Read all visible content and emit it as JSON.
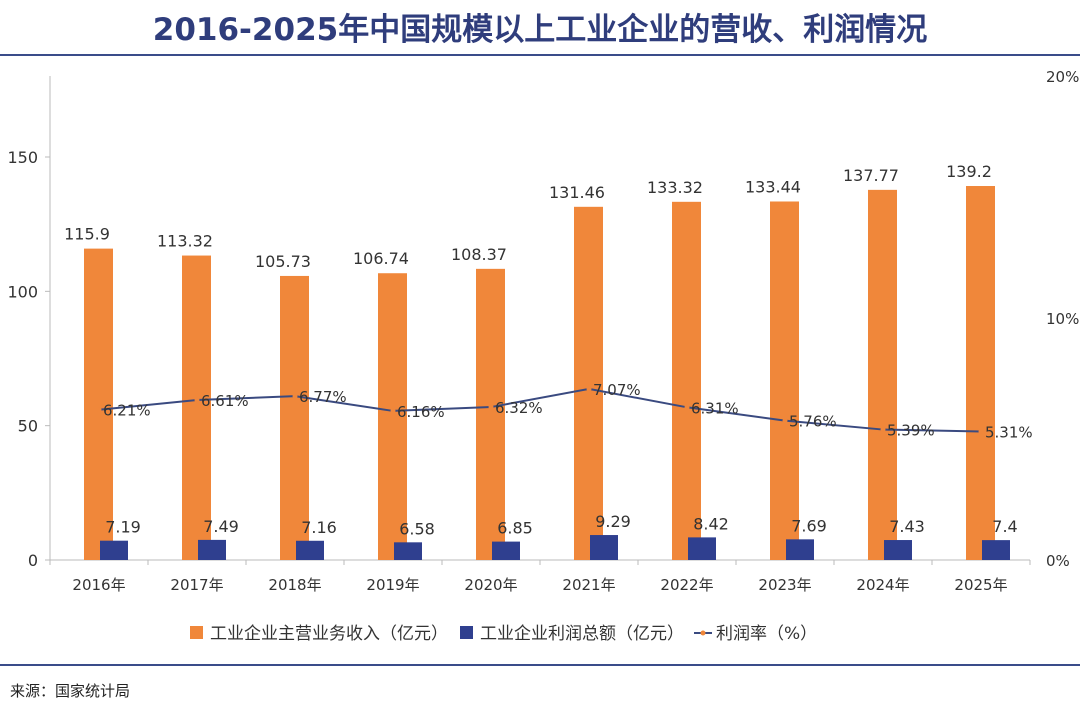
{
  "title": "2016-2025年中国规模以上工业企业的营收、利润情况",
  "source": "来源：国家统计局",
  "colors": {
    "revenue": "#f0873a",
    "profit": "#2f3f8f",
    "line": "#3a4a80",
    "marker": "#f0873a",
    "title": "#2f3d7c"
  },
  "chart_data": {
    "type": "bar+line",
    "categories": [
      "2016年",
      "2017年",
      "2018年",
      "2019年",
      "2020年",
      "2021年",
      "2022年",
      "2023年",
      "2024年",
      "2025年"
    ],
    "series": [
      {
        "name": "工业企业主营业务收入（亿元）",
        "type": "bar",
        "axis": "left",
        "values": [
          115.9,
          113.32,
          105.73,
          106.74,
          108.37,
          131.46,
          133.32,
          133.44,
          137.77,
          139.2
        ],
        "labels": [
          "115.9",
          "113.32",
          "105.73",
          "106.74",
          "108.37",
          "131.46",
          "133.32",
          "133.44",
          "137.77",
          "139.2"
        ]
      },
      {
        "name": "工业企业利润总额（亿元）",
        "type": "bar",
        "axis": "left",
        "values": [
          7.19,
          7.49,
          7.16,
          6.58,
          6.85,
          9.29,
          8.42,
          7.69,
          7.43,
          7.4
        ],
        "labels": [
          "7.19",
          "7.49",
          "7.16",
          "6.58",
          "6.85",
          "9.29",
          "8.42",
          "7.69",
          "7.43",
          "7.4"
        ]
      },
      {
        "name": "利润率（%）",
        "type": "line",
        "axis": "right",
        "values": [
          6.21,
          6.61,
          6.77,
          6.16,
          6.32,
          7.07,
          6.31,
          5.76,
          5.39,
          5.31
        ],
        "labels": [
          "6.21%",
          "6.61%",
          "6.77%",
          "6.16%",
          "6.32%",
          "7.07%",
          "6.31%",
          "5.76%",
          "5.39%",
          "5.31%"
        ]
      }
    ],
    "left_axis": {
      "ylim": [
        0,
        150
      ],
      "ticks": [
        "0",
        "50",
        "100",
        "150"
      ]
    },
    "right_axis": {
      "ylim": [
        0,
        20
      ],
      "ticks": [
        "0%",
        "10%",
        "20%"
      ]
    },
    "legend": "bottom",
    "grid": false
  }
}
